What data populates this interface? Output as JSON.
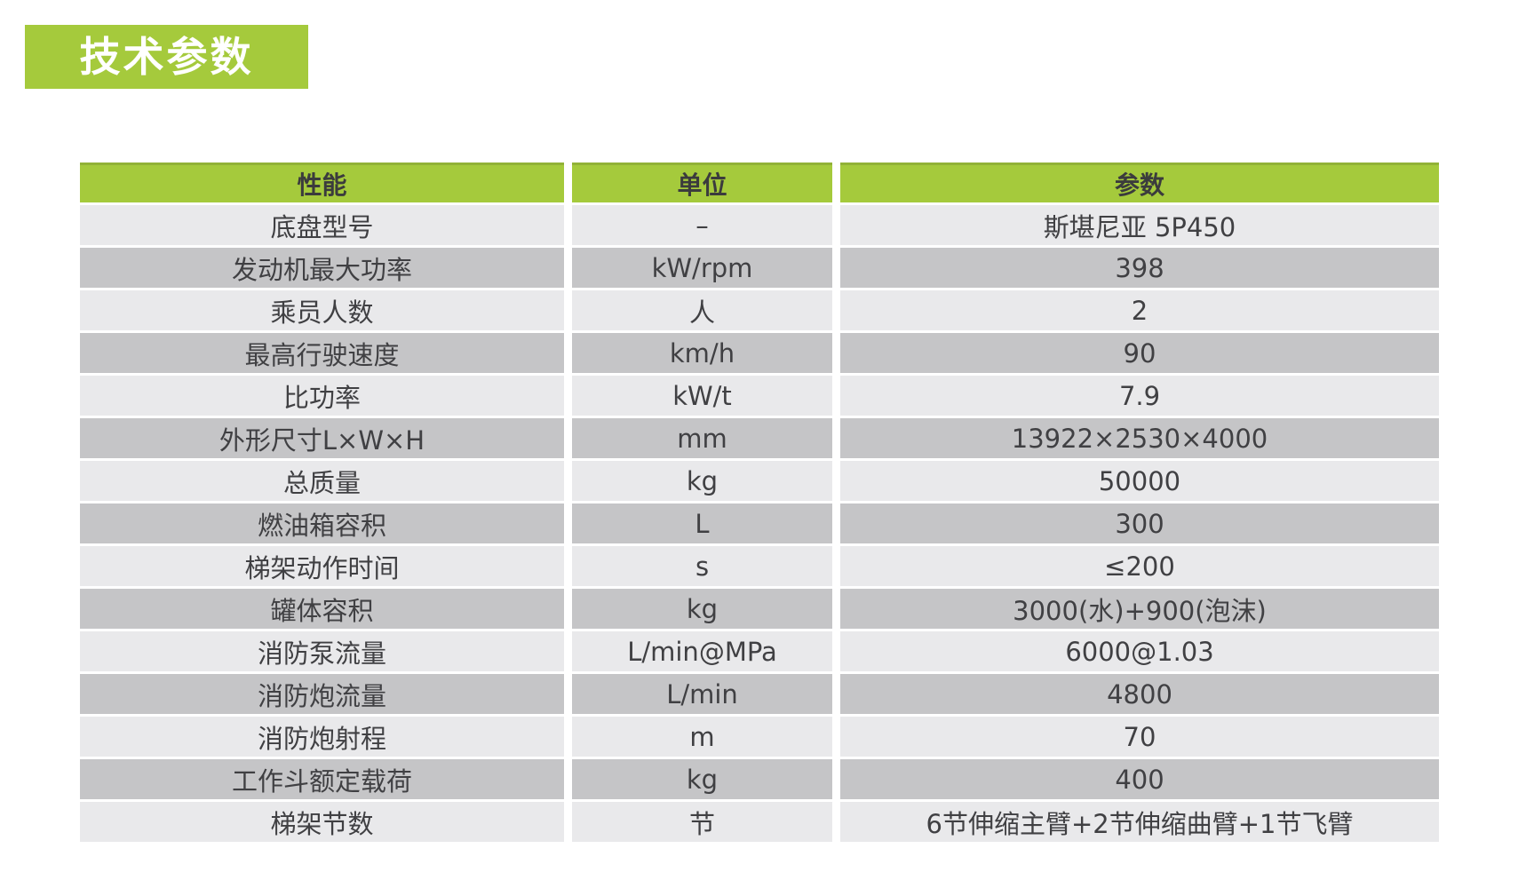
{
  "title": "技术参数",
  "colors": {
    "accent_green": "#a5ca3c",
    "accent_green_edge": "#92b237",
    "row_light": "#e9e9eb",
    "row_dark": "#c5c5c7",
    "header_text": "#3b3b3d",
    "body_text": "#404043",
    "title_text": "#ffffff"
  },
  "table": {
    "headers": [
      "性能",
      "单位",
      "参数"
    ],
    "rows": [
      {
        "name": "底盘型号",
        "unit": "–",
        "value": "斯堪尼亚 5P450"
      },
      {
        "name": "发动机最大功率",
        "unit": "kW/rpm",
        "value": "398"
      },
      {
        "name": "乘员人数",
        "unit": "人",
        "value": "2"
      },
      {
        "name": "最高行驶速度",
        "unit": "km/h",
        "value": "90"
      },
      {
        "name": "比功率",
        "unit": "kW/t",
        "value": "7.9"
      },
      {
        "name": "外形尺寸L×W×H",
        "unit": "mm",
        "value": "13922×2530×4000"
      },
      {
        "name": "总质量",
        "unit": "kg",
        "value": "50000"
      },
      {
        "name": "燃油箱容积",
        "unit": "L",
        "value": "300"
      },
      {
        "name": "梯架动作时间",
        "unit": "s",
        "value": "≤200"
      },
      {
        "name": "罐体容积",
        "unit": "kg",
        "value": "3000(水)+900(泡沫)"
      },
      {
        "name": "消防泵流量",
        "unit": "L/min@MPa",
        "value": "6000@1.03"
      },
      {
        "name": "消防炮流量",
        "unit": "L/min",
        "value": "4800"
      },
      {
        "name": "消防炮射程",
        "unit": "m",
        "value": "70"
      },
      {
        "name": "工作斗额定载荷",
        "unit": "kg",
        "value": "400"
      },
      {
        "name": "梯架节数",
        "unit": "节",
        "value": "6节伸缩主臂+2节伸缩曲臂+1节飞臂"
      }
    ]
  }
}
